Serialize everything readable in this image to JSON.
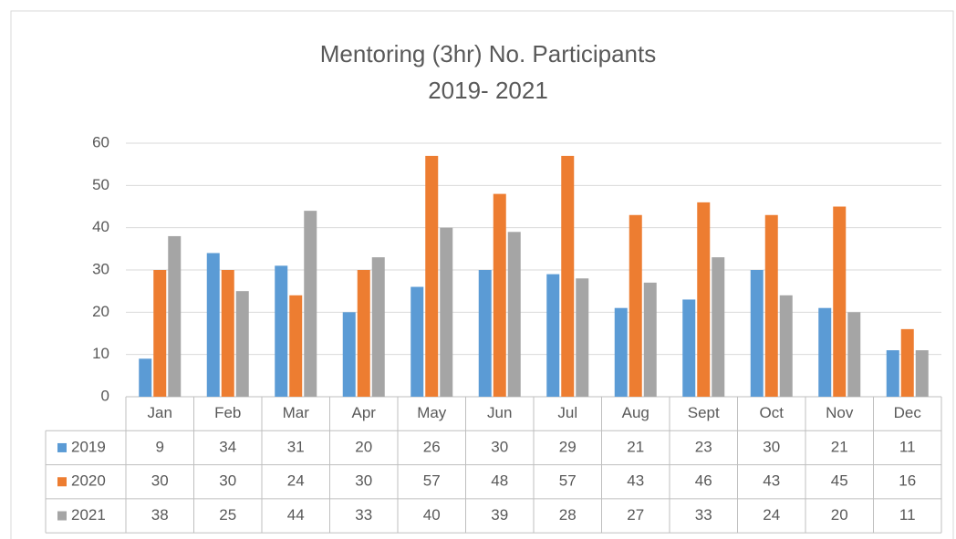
{
  "chart_data": {
    "type": "bar",
    "title": "Mentoring (3hr) No. Participants",
    "subtitle": "2019- 2021",
    "categories": [
      "Jan",
      "Feb",
      "Mar",
      "Apr",
      "May",
      "Jun",
      "Jul",
      "Aug",
      "Sept",
      "Oct",
      "Nov",
      "Dec"
    ],
    "series": [
      {
        "name": "2019",
        "color": "#5b9bd5",
        "values": [
          9,
          34,
          31,
          20,
          26,
          30,
          29,
          21,
          23,
          30,
          21,
          11
        ]
      },
      {
        "name": "2020",
        "color": "#ed7d31",
        "values": [
          30,
          30,
          24,
          30,
          57,
          48,
          57,
          43,
          46,
          43,
          45,
          16
        ]
      },
      {
        "name": "2021",
        "color": "#a5a5a5",
        "values": [
          38,
          25,
          44,
          33,
          40,
          39,
          28,
          27,
          33,
          24,
          20,
          11
        ]
      }
    ],
    "ylim": [
      0,
      60
    ],
    "yticks": [
      0,
      10,
      20,
      30,
      40,
      50,
      60
    ],
    "grid": true
  }
}
